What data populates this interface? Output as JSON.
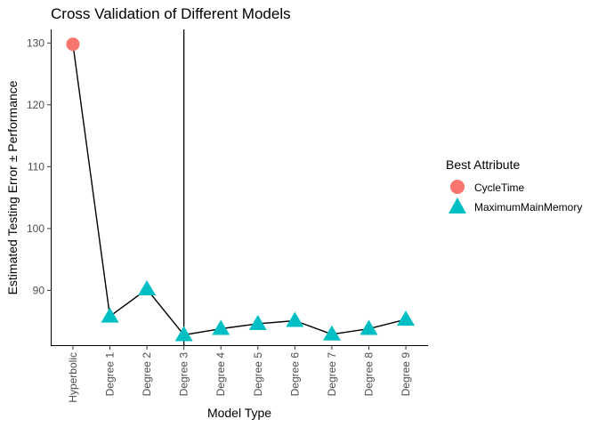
{
  "chart_data": {
    "type": "scatter",
    "title": "Cross Validation of Different Models",
    "xlabel": "Model Type",
    "ylabel": "Estimated Testing Error ± Performance",
    "categories": [
      "Hyperbolic",
      "Degree 1",
      "Degree 2",
      "Degree 3",
      "Degree 4",
      "Degree 5",
      "Degree 6",
      "Degree 7",
      "Degree 8",
      "Degree 9"
    ],
    "values": [
      129.8,
      85.8,
      90.2,
      82.8,
      83.8,
      84.6,
      85.1,
      82.9,
      83.8,
      85.3
    ],
    "best_attribute": [
      "CycleTime",
      "MaximumMainMemory",
      "MaximumMainMemory",
      "MaximumMainMemory",
      "MaximumMainMemory",
      "MaximumMainMemory",
      "MaximumMainMemory",
      "MaximumMainMemory",
      "MaximumMainMemory",
      "MaximumMainMemory"
    ],
    "yticks": [
      90,
      100,
      110,
      120,
      130
    ],
    "ylim": [
      81.0,
      132.2
    ],
    "vline_category": "Degree 3",
    "connecting_line": true,
    "grid": false,
    "legend": {
      "title": "Best Attribute",
      "position": "right",
      "entries": [
        {
          "label": "CycleTime",
          "shape": "circle",
          "color": "#F8766D"
        },
        {
          "label": "MaximumMainMemory",
          "shape": "triangle",
          "color": "#00BFC4"
        }
      ]
    }
  }
}
